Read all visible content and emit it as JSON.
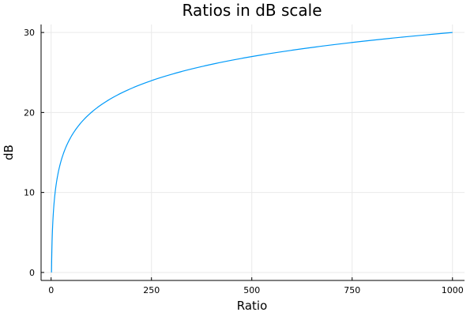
{
  "chart_data": {
    "type": "line",
    "title": "Ratios in dB scale",
    "xlabel": "Ratio",
    "ylabel": "dB",
    "x_ticks": [
      0,
      250,
      500,
      750,
      1000
    ],
    "x_tick_labels": [
      "0",
      "250",
      "500",
      "750",
      "1000"
    ],
    "y_ticks": [
      0,
      10,
      20,
      30
    ],
    "y_tick_labels": [
      "0",
      "10",
      "20",
      "30"
    ],
    "xlim": [
      -25,
      1030
    ],
    "ylim": [
      -1,
      31
    ],
    "grid": true,
    "legend": "none",
    "series": [
      {
        "color": "#009af9",
        "function": "10*log10(x)",
        "x": [
          1,
          2,
          5,
          10,
          20,
          50,
          100,
          150,
          200,
          250,
          300,
          400,
          500,
          600,
          700,
          750,
          800,
          900,
          1000
        ],
        "y": [
          0,
          3.01,
          6.99,
          10,
          13.01,
          16.99,
          20,
          21.76,
          23.01,
          23.98,
          24.77,
          26.02,
          26.99,
          27.78,
          28.45,
          28.75,
          29.03,
          29.54,
          30
        ]
      }
    ]
  }
}
